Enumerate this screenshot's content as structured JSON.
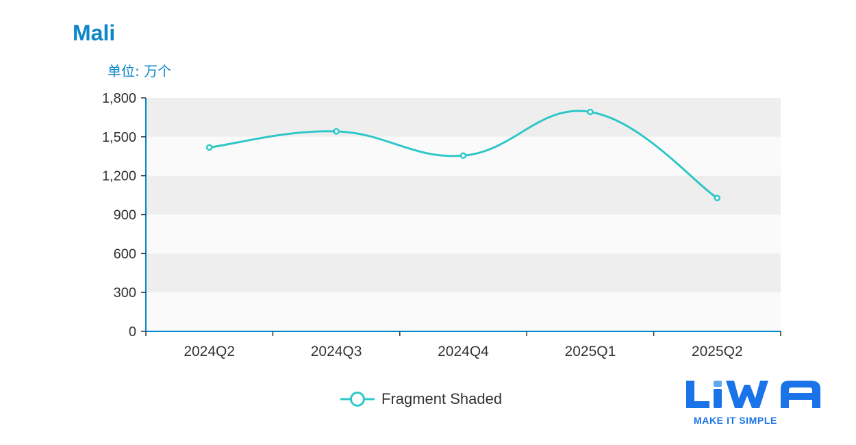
{
  "chart_data": {
    "type": "line",
    "title": "Mali",
    "unit": "单位: 万个",
    "categories": [
      "2024Q2",
      "2024Q3",
      "2024Q4",
      "2025Q1",
      "2025Q2"
    ],
    "series": [
      {
        "name": "Fragment Shaded",
        "values": [
          1418,
          1542,
          1355,
          1692,
          1028
        ],
        "color": "#2ec7c9"
      }
    ],
    "ylim": [
      0,
      1800
    ],
    "yticks": [
      0,
      300,
      600,
      900,
      1200,
      1500,
      1800
    ],
    "ytick_labels": [
      "0",
      "300",
      "600",
      "900",
      "1,200",
      "1,500",
      "1,800"
    ],
    "smooth": true,
    "grid_bands": true,
    "legend_position": "bottom-center"
  },
  "colors": {
    "title": "#0c86c9",
    "axis": "#008acd",
    "band_dark": "#eeeeee",
    "band_light": "#fafafa"
  },
  "branding": {
    "logo_text": "LiWA",
    "tagline": "MAKE IT SIMPLE"
  }
}
